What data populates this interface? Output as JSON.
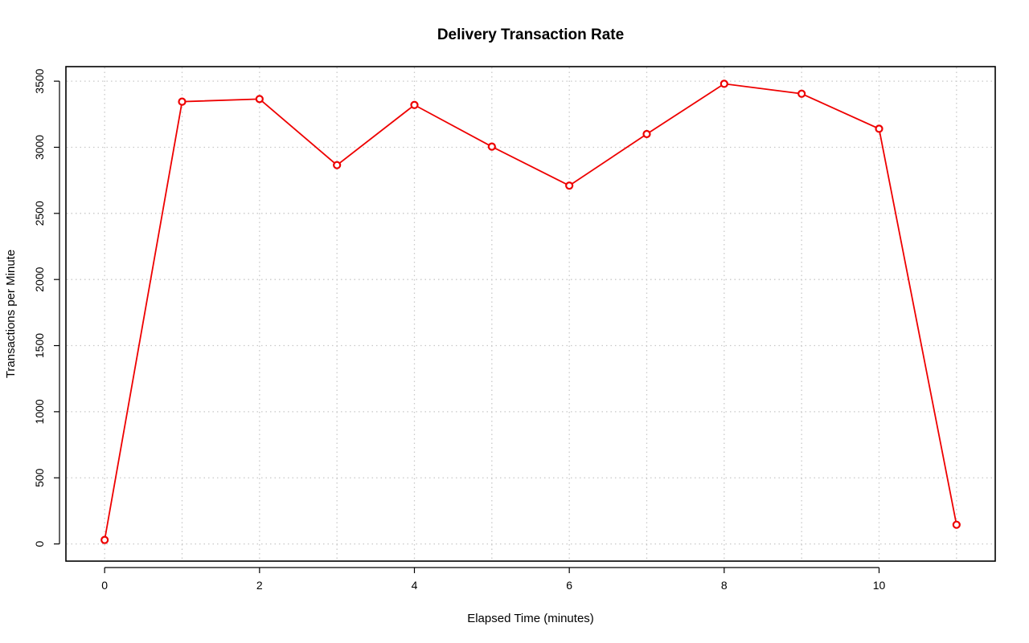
{
  "chart_data": {
    "type": "line",
    "title": "Delivery Transaction Rate",
    "xlabel": "Elapsed Time (minutes)",
    "ylabel": "Transactions per Minute",
    "xlim": [
      -0.5,
      11.5
    ],
    "ylim": [
      -130,
      3610
    ],
    "x_ticks": [
      0,
      2,
      4,
      6,
      8,
      10
    ],
    "y_ticks": [
      0,
      500,
      1000,
      1500,
      2000,
      2500,
      3000,
      3500
    ],
    "x_grid": [
      0,
      1,
      2,
      3,
      4,
      5,
      6,
      7,
      8,
      9,
      10,
      11
    ],
    "grid": true,
    "series": [
      {
        "color": "#ee0000",
        "x": [
          0,
          1,
          2,
          3,
          4,
          5,
          6,
          7,
          8,
          9,
          10,
          11
        ],
        "values": [
          30,
          3345,
          3365,
          2865,
          3320,
          3005,
          2710,
          3100,
          3480,
          3405,
          3140,
          145
        ]
      }
    ]
  }
}
